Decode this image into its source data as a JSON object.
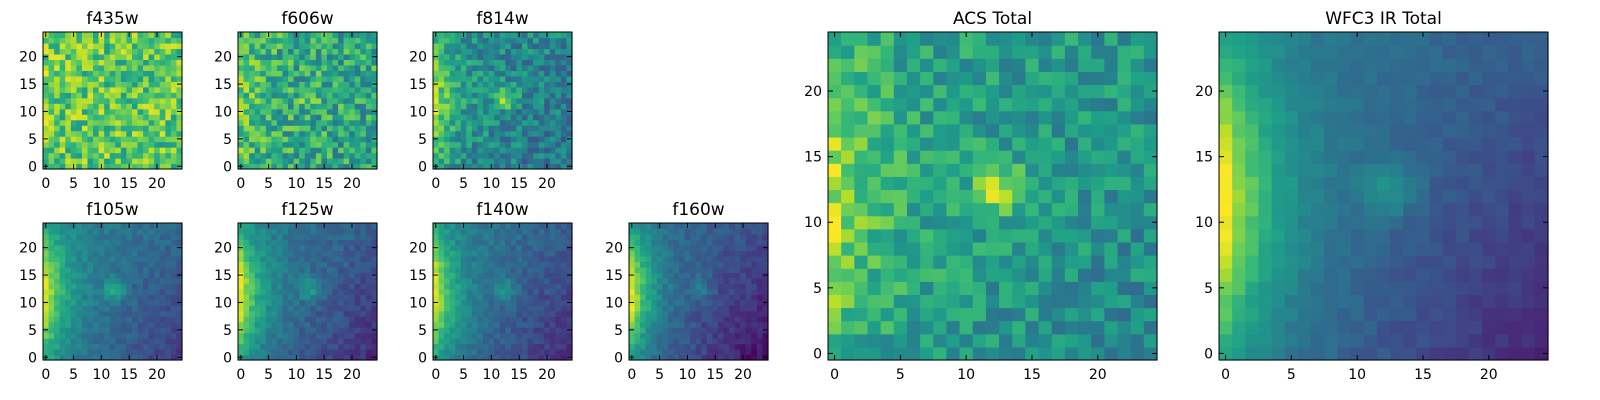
{
  "chart_data": [
    {
      "type": "heatmap",
      "title": "f435w",
      "xlim": [
        0,
        24
      ],
      "ylim": [
        0,
        24
      ],
      "xticks": [
        "0",
        "5",
        "10",
        "15",
        "20"
      ],
      "yticks": [
        "0",
        "5",
        "10",
        "15",
        "20"
      ],
      "colormap": "viridis",
      "grid": false,
      "pattern": {
        "base": 0.74,
        "edge": 0.05,
        "blob": 0.0,
        "right": 0.0,
        "noise": 0.42,
        "seed": 11
      }
    },
    {
      "type": "heatmap",
      "title": "f606w",
      "xlim": [
        0,
        24
      ],
      "ylim": [
        0,
        24
      ],
      "xticks": [
        "0",
        "5",
        "10",
        "15",
        "20"
      ],
      "yticks": [
        "0",
        "5",
        "10",
        "15",
        "20"
      ],
      "colormap": "viridis",
      "grid": false,
      "pattern": {
        "base": 0.62,
        "edge": 0.2,
        "blob": 0.15,
        "right": -0.05,
        "noise": 0.42,
        "seed": 23
      }
    },
    {
      "type": "heatmap",
      "title": "f814w",
      "xlim": [
        0,
        24
      ],
      "ylim": [
        0,
        24
      ],
      "xticks": [
        "0",
        "5",
        "10",
        "15",
        "20"
      ],
      "yticks": [
        "0",
        "5",
        "10",
        "15",
        "20"
      ],
      "colormap": "viridis",
      "grid": false,
      "pattern": {
        "base": 0.5,
        "edge": 0.35,
        "blob": 0.35,
        "right": -0.12,
        "noise": 0.32,
        "seed": 37
      }
    },
    {
      "type": "heatmap",
      "title": "f105w",
      "xlim": [
        0,
        24
      ],
      "ylim": [
        0,
        24
      ],
      "xticks": [
        "0",
        "5",
        "10",
        "15",
        "20"
      ],
      "yticks": [
        "0",
        "5",
        "10",
        "15",
        "20"
      ],
      "colormap": "viridis",
      "grid": false,
      "pattern": {
        "base": 0.45,
        "edge": 0.5,
        "blob": 0.25,
        "right": -0.28,
        "noise": 0.12,
        "seed": 41
      }
    },
    {
      "type": "heatmap",
      "title": "f125w",
      "xlim": [
        0,
        24
      ],
      "ylim": [
        0,
        24
      ],
      "xticks": [
        "0",
        "5",
        "10",
        "15",
        "20"
      ],
      "yticks": [
        "0",
        "5",
        "10",
        "15",
        "20"
      ],
      "colormap": "viridis",
      "grid": false,
      "pattern": {
        "base": 0.42,
        "edge": 0.55,
        "blob": 0.22,
        "right": -0.3,
        "noise": 0.13,
        "seed": 53
      }
    },
    {
      "type": "heatmap",
      "title": "f140w",
      "xlim": [
        0,
        24
      ],
      "ylim": [
        0,
        24
      ],
      "xticks": [
        "0",
        "5",
        "10",
        "15",
        "20"
      ],
      "yticks": [
        "0",
        "5",
        "10",
        "15",
        "20"
      ],
      "colormap": "viridis",
      "grid": false,
      "pattern": {
        "base": 0.42,
        "edge": 0.55,
        "blob": 0.18,
        "right": -0.3,
        "noise": 0.12,
        "seed": 67
      }
    },
    {
      "type": "heatmap",
      "title": "f160w",
      "xlim": [
        0,
        24
      ],
      "ylim": [
        0,
        24
      ],
      "xticks": [
        "0",
        "5",
        "10",
        "15",
        "20"
      ],
      "yticks": [
        "0",
        "5",
        "10",
        "15",
        "20"
      ],
      "colormap": "viridis",
      "grid": false,
      "pattern": {
        "base": 0.38,
        "edge": 0.6,
        "blob": 0.15,
        "right": -0.35,
        "noise": 0.12,
        "seed": 79
      }
    },
    {
      "type": "heatmap",
      "title": "ACS Total",
      "xlim": [
        0,
        24
      ],
      "ylim": [
        0,
        24
      ],
      "xticks": [
        "0",
        "5",
        "10",
        "15",
        "20"
      ],
      "yticks": [
        "0",
        "5",
        "10",
        "15",
        "20"
      ],
      "colormap": "viridis",
      "grid": false,
      "pattern": {
        "base": 0.58,
        "edge": 0.3,
        "blob": 0.35,
        "right": -0.12,
        "noise": 0.28,
        "seed": 97
      }
    },
    {
      "type": "heatmap",
      "title": "WFC3 IR Total",
      "xlim": [
        0,
        24
      ],
      "ylim": [
        0,
        24
      ],
      "xticks": [
        "0",
        "5",
        "10",
        "15",
        "20"
      ],
      "yticks": [
        "0",
        "5",
        "10",
        "15",
        "20"
      ],
      "colormap": "viridis",
      "grid": false,
      "pattern": {
        "base": 0.42,
        "edge": 0.58,
        "blob": 0.2,
        "right": -0.32,
        "noise": 0.07,
        "seed": 113
      }
    }
  ]
}
